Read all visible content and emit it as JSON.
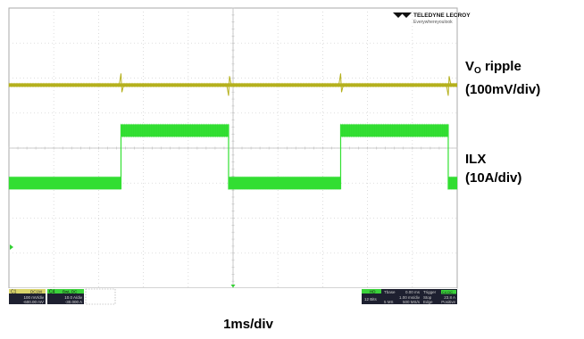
{
  "chart_data": {
    "type": "line",
    "title": "",
    "xlabel": "1ms/div",
    "ylabel": "",
    "x_divisions": 10,
    "y_divisions": 8,
    "grid": true,
    "series": [
      {
        "name": "VO ripple",
        "scale_label": "(100mV/div)",
        "color": "#b5b01c",
        "level_div": 5.8,
        "note": "flat trace with small spikes at each switching edge"
      },
      {
        "name": "ILX",
        "scale_label": "(10A/div)",
        "color": "#33e033",
        "transitions_ms": [
          0.0,
          2.5,
          4.9,
          7.4,
          9.8
        ],
        "low_div": 3.0,
        "high_div": 4.5,
        "start_state": "low"
      }
    ]
  },
  "annotations": {
    "vo_main": "V",
    "vo_sub": "O",
    "vo_rest": " ripple",
    "vo_scale": "(100mV/div)",
    "ilx_name": "ILX",
    "ilx_scale": "(10A/div)",
    "timebase": "1ms/div"
  },
  "logo": {
    "brand": "TELEDYNE LECROY",
    "tagline": "Everywhereyoulook"
  },
  "status_bar": {
    "c1_label": "C1",
    "c1_tag": "DC1M",
    "c1_vdiv": "100 mV/div",
    "c1_offset": "-600.00 mV",
    "c4_label": "C4",
    "c4_tag": "BwL DC",
    "c4_adiv": "10.0 A/div",
    "c4_offset": "-30.000 A",
    "hd_tag": "HD",
    "bits": "12 Bits",
    "tbase_label": "Tbase",
    "tbase_value": "0.00 ms",
    "samples": "5 MS",
    "tdiv": "1.00 ms/div",
    "rate": "500 MS/s",
    "trigger_label": "Trigger",
    "trigger_tags": "C4 DC",
    "trig_mode": "Stop",
    "trig_type": "Edge",
    "trig_level": "23.8 A",
    "trig_slope": "Positive"
  }
}
